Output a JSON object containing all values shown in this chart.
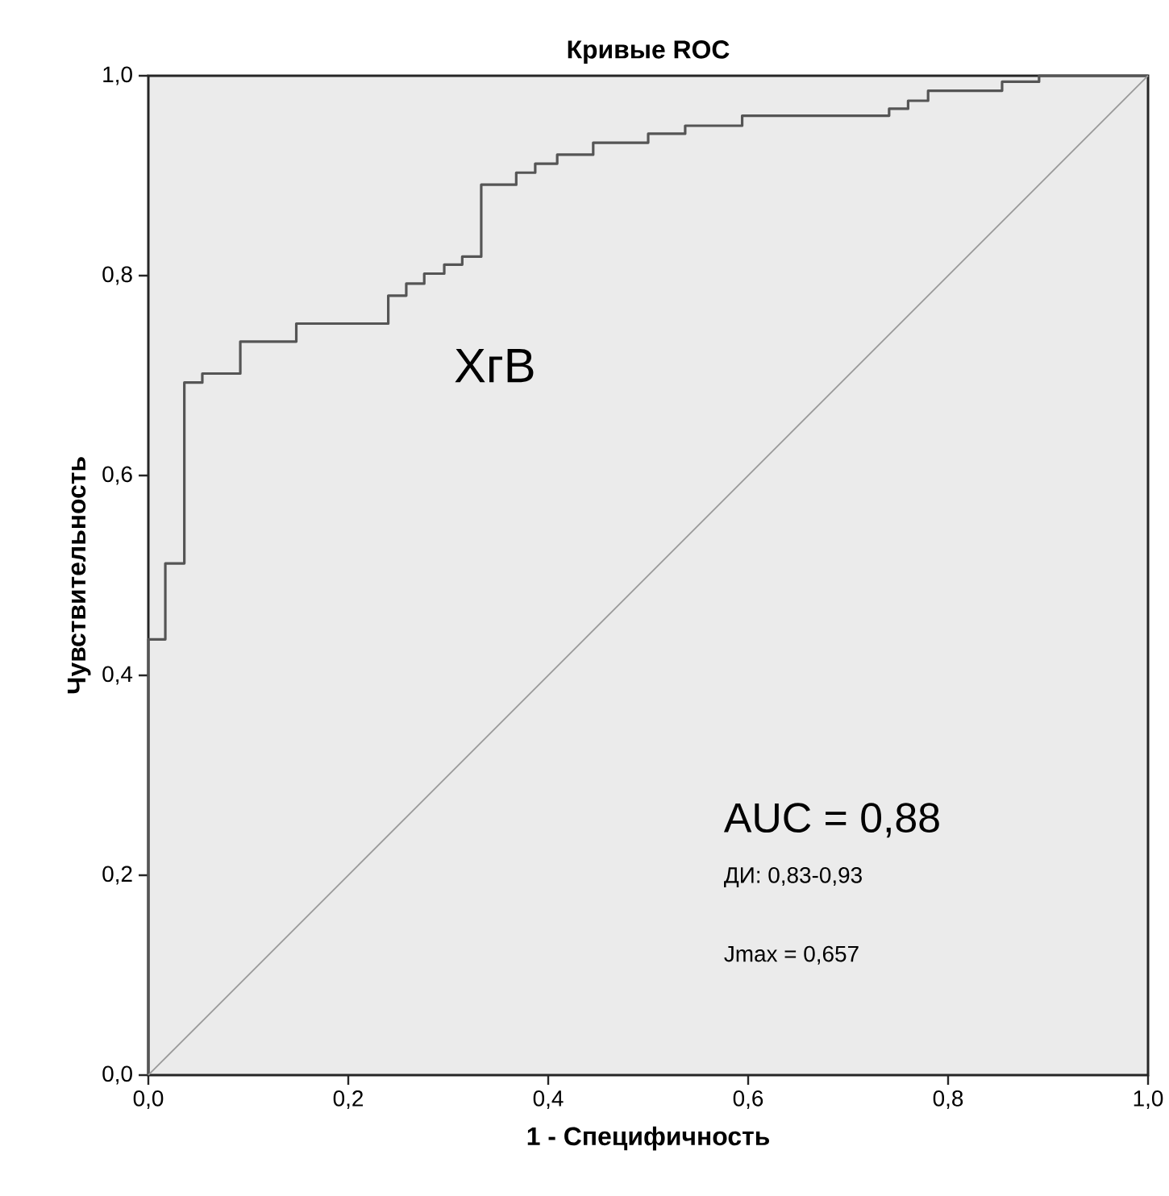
{
  "chart_data": {
    "type": "step",
    "title": "Кривые ROC",
    "xlabel": "1 - Специфичность",
    "ylabel": "Чувствительность",
    "xlim": [
      0,
      1
    ],
    "ylim": [
      0,
      1
    ],
    "xticks": [
      {
        "value": 0,
        "label": "0,0"
      },
      {
        "value": 0.2,
        "label": "0,2"
      },
      {
        "value": 0.4,
        "label": "0,4"
      },
      {
        "value": 0.6,
        "label": "0,6"
      },
      {
        "value": 0.8,
        "label": "0,8"
      },
      {
        "value": 1,
        "label": "1,0"
      }
    ],
    "yticks": [
      {
        "value": 0,
        "label": "0,0"
      },
      {
        "value": 0.2,
        "label": "0,2"
      },
      {
        "value": 0.4,
        "label": "0,4"
      },
      {
        "value": 0.6,
        "label": "0,6"
      },
      {
        "value": 0.8,
        "label": "0,8"
      },
      {
        "value": 1,
        "label": "1,0"
      }
    ],
    "grid": false,
    "marker": "none",
    "series": [
      {
        "color": "#555555",
        "x": [
          0,
          0,
          0.017,
          0.036,
          0.054,
          0.092,
          0.148,
          0.24,
          0.258,
          0.276,
          0.296,
          0.314,
          0.333,
          0.368,
          0.387,
          0.409,
          0.445,
          0.5,
          0.537,
          0.594,
          0.741,
          0.76,
          0.78,
          0.854,
          0.891,
          1
        ],
        "values": [
          0,
          0.436,
          0.512,
          0.693,
          0.702,
          0.734,
          0.752,
          0.78,
          0.792,
          0.802,
          0.811,
          0.819,
          0.891,
          0.903,
          0.912,
          0.921,
          0.933,
          0.942,
          0.95,
          0.96,
          0.967,
          0.975,
          0.985,
          0.994,
          1,
          1
        ]
      },
      {
        "type": "line",
        "color": "#999999",
        "x": [
          0,
          1
        ],
        "values": [
          0,
          1
        ]
      }
    ],
    "annotations": [
      "ХгВ",
      "AUC = 0,88",
      "ДИ: 0,83-0,93",
      "Jmax = 0,657"
    ]
  }
}
